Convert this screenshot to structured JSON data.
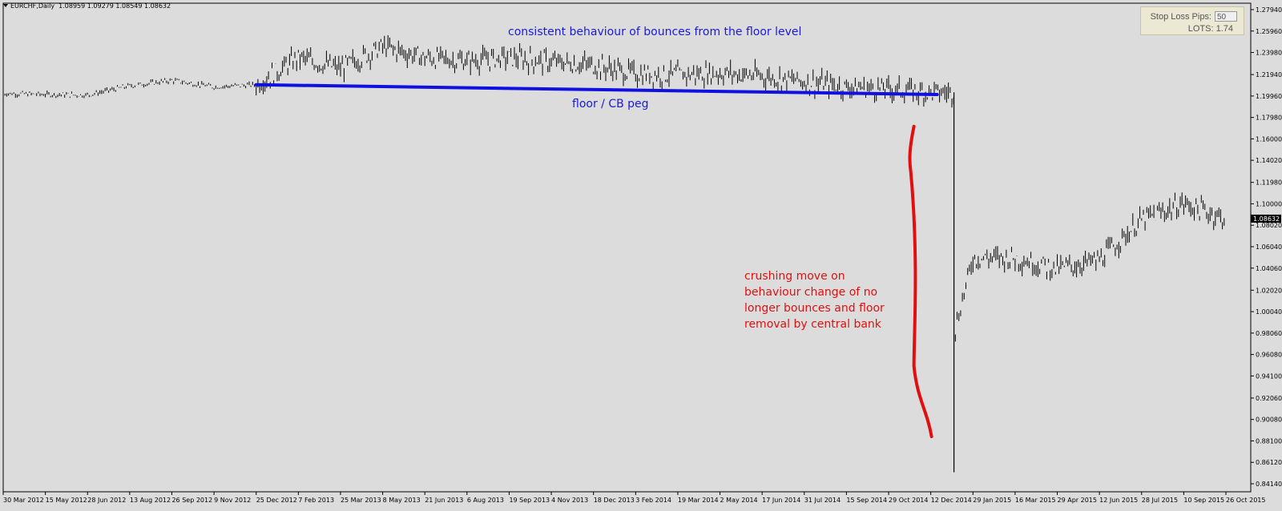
{
  "header": {
    "symbol": "EURCHF,Daily",
    "ohlc": "1.08959 1.09279 1.08549 1.08632"
  },
  "panel": {
    "stop_loss_label": "Stop Loss Pips:",
    "stop_loss_value": "50",
    "lots_label": "LOTS:",
    "lots_value": "1.74"
  },
  "annotations": {
    "top_note": "consistent behaviour of bounces from the floor level",
    "floor_label": "floor / CB peg",
    "crash_note": "crushing move on behaviour change of no longer bounces and floor removal by central bank"
  },
  "colors": {
    "background": "#dcdcdc",
    "candle": "#000000",
    "floor_line": "#1010e0",
    "annotation_red": "#e01010",
    "annotation_blue": "#1a1ad8"
  },
  "chart_data": {
    "type": "line",
    "title": "EURCHF,Daily",
    "current_price": "1.08632",
    "ylim": [
      0.8414,
      1.2794
    ],
    "y_ticks": [
      "1.27940",
      "1.25960",
      "1.23980",
      "1.21940",
      "1.19960",
      "1.17980",
      "1.16000",
      "1.14020",
      "1.11980",
      "1.10000",
      "1.08020",
      "1.06040",
      "1.04060",
      "1.02020",
      "1.00040",
      "0.98060",
      "0.96080",
      "0.94100",
      "0.92060",
      "0.90080",
      "0.88100",
      "0.86120",
      "0.84140"
    ],
    "x_ticks": [
      "30 Mar 2012",
      "15 May 2012",
      "28 Jun 2012",
      "13 Aug 2012",
      "26 Sep 2012",
      "9 Nov 2012",
      "25 Dec 2012",
      "7 Feb 2013",
      "25 Mar 2013",
      "8 May 2013",
      "21 Jun 2013",
      "6 Aug 2013",
      "19 Sep 2013",
      "4 Nov 2013",
      "18 Dec 2013",
      "3 Feb 2014",
      "19 Mar 2014",
      "2 May 2014",
      "17 Jun 2014",
      "31 Jul 2014",
      "15 Sep 2014",
      "29 Oct 2014",
      "12 Dec 2014",
      "29 Jan 2015",
      "16 Mar 2015",
      "29 Apr 2015",
      "12 Jun 2015",
      "28 Jul 2015",
      "10 Sep 2015",
      "26 Oct 2015"
    ],
    "grid": false,
    "series": [
      {
        "x": [
          "30 Mar 2012",
          "15 May 2012",
          "28 Jun 2012",
          "13 Aug 2012",
          "26 Sep 2012",
          "9 Nov 2012",
          "25 Dec 2012",
          "7 Feb 2013",
          "25 Mar 2013",
          "8 May 2013",
          "21 Jun 2013",
          "6 Aug 2013",
          "19 Sep 2013",
          "4 Nov 2013",
          "18 Dec 2013",
          "3 Feb 2014",
          "19 Mar 2014",
          "2 May 2014",
          "17 Jun 2014",
          "31 Jul 2014",
          "15 Sep 2014",
          "29 Oct 2014",
          "12 Dec 2014",
          "29 Jan 2015",
          "16 Mar 2015",
          "29 Apr 2015",
          "12 Jun 2015",
          "28 Jul 2015",
          "10 Sep 2015",
          "26 Oct 2015"
        ],
        "values": [
          1.202,
          1.201,
          1.2005,
          1.209,
          1.214,
          1.208,
          1.21,
          1.235,
          1.225,
          1.245,
          1.235,
          1.232,
          1.235,
          1.231,
          1.228,
          1.22,
          1.219,
          1.221,
          1.218,
          1.213,
          1.208,
          1.206,
          1.203,
          1.05,
          1.05,
          1.04,
          1.048,
          1.085,
          1.1,
          1.0863
        ]
      }
    ],
    "extra_points": [
      {
        "label": "15 Jan 2015 low",
        "value": 0.852
      }
    ],
    "floor_level": [
      1.21,
      1.201
    ]
  }
}
